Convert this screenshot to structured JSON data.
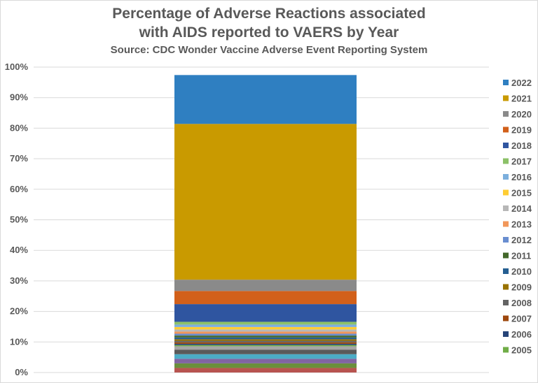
{
  "chart_data": {
    "type": "bar",
    "stacked": true,
    "title": "Percentage of Adverse Reactions associated",
    "title_line2": "with AIDS reported to VAERS by Year",
    "subtitle": "Source: CDC Wonder Vaccine Adverse Event Reporting System",
    "ylim": [
      0,
      100
    ],
    "y_ticks": [
      "0%",
      "10%",
      "20%",
      "30%",
      "40%",
      "50%",
      "60%",
      "70%",
      "80%",
      "90%",
      "100%"
    ],
    "grid": true,
    "legend_position": "right",
    "series": [
      {
        "name": "2005",
        "value": 0.4,
        "color": "#70ad47"
      },
      {
        "name": "2006",
        "value": 0.4,
        "color": "#264478"
      },
      {
        "name": "2007",
        "value": 0.5,
        "color": "#9e480e"
      },
      {
        "name": "2008",
        "value": 0.5,
        "color": "#636363"
      },
      {
        "name": "2009",
        "value": 0.5,
        "color": "#997300"
      },
      {
        "name": "2010",
        "value": 0.6,
        "color": "#255e91"
      },
      {
        "name": "2011",
        "value": 0.6,
        "color": "#43682b"
      },
      {
        "name": "2012",
        "value": 0.6,
        "color": "#698ed0"
      },
      {
        "name": "2013",
        "value": 0.7,
        "color": "#f1975a"
      },
      {
        "name": "2014",
        "value": 0.7,
        "color": "#b7b7b7"
      },
      {
        "name": "2015",
        "value": 0.8,
        "color": "#ffcd33"
      },
      {
        "name": "2016",
        "value": 0.8,
        "color": "#7cafdd"
      },
      {
        "name": "2017",
        "value": 0.9,
        "color": "#8cc168"
      },
      {
        "name": "2018",
        "value": 5.8,
        "color": "#2f55a0"
      },
      {
        "name": "2019",
        "value": 4.3,
        "color": "#d2601a"
      },
      {
        "name": "2020",
        "value": 3.7,
        "color": "#8a8a8a"
      },
      {
        "name": "2021",
        "value": 51.0,
        "color": "#c99a00"
      },
      {
        "name": "2022",
        "value": 16.0,
        "color": "#2f7fc1"
      }
    ],
    "filler_segments": [
      {
        "value": 1.5,
        "color": "#b85450"
      },
      {
        "value": 1.5,
        "color": "#6a8f3b"
      },
      {
        "value": 1.5,
        "color": "#8064a2"
      },
      {
        "value": 1.5,
        "color": "#4bacc6"
      },
      {
        "value": 1.5,
        "color": "#5a5a5a"
      },
      {
        "value": 1.1,
        "color": "#a5a5a5"
      }
    ]
  }
}
